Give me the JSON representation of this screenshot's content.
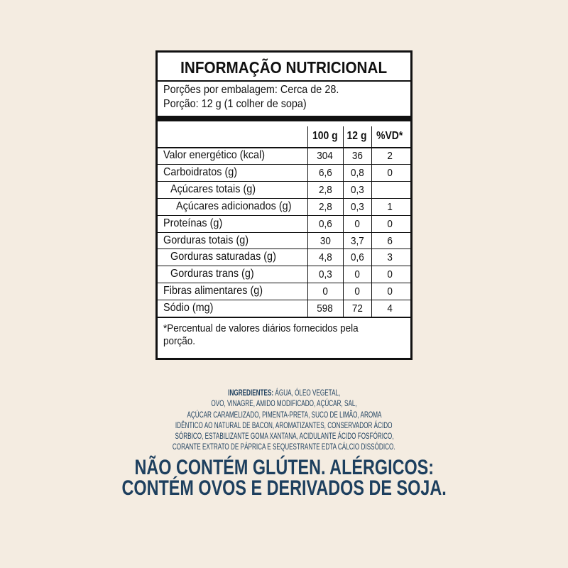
{
  "label": {
    "title": "INFORMAÇÃO NUTRICIONAL",
    "servings": [
      "Porções por embalagem: Cerca de 28.",
      "Porção: 12 g (1 colher de sopa)"
    ],
    "columns": [
      "100 g",
      "12 g",
      "%VD*"
    ],
    "rows": [
      [
        "Valor energético (kcal)",
        "304",
        "36",
        "2"
      ],
      [
        "Carboidratos (g)",
        "6,6",
        "0,8",
        "0"
      ],
      [
        "Açúcares totais (g)",
        "2,8",
        "0,3",
        null
      ],
      [
        "Açúcares adicionados (g)",
        "2,8",
        "0,3",
        "1"
      ],
      [
        "Proteínas (g)",
        "0,6",
        "0",
        "0"
      ],
      [
        "Gorduras totais (g)",
        "30",
        "3,7",
        "6"
      ],
      [
        "Gorduras saturadas (g)",
        "4,8",
        "0,6",
        "3"
      ],
      [
        "Gorduras trans (g)",
        "0,3",
        "0",
        "0"
      ],
      [
        "Fibras alimentares (g)",
        "0",
        "0",
        "0"
      ],
      [
        "Sódio (mg)",
        "598",
        "72",
        "4"
      ]
    ],
    "footnote": [
      "*Percentual de valores diários fornecidos pela",
      "porção."
    ]
  },
  "ingredients": {
    "label": "INGREDIENTES:",
    "lines": [
      "ÁGUA, ÓLEO VEGETAL,",
      "OVO, VINAGRE, AMIDO MODIFICADO, AÇÚCAR, SAL,",
      "AÇÚCAR CARAMELIZADO, PIMENTA-PRETA, SUCO DE LIMÃO, AROMA",
      "IDÊNTICO AO NATURAL DE BACON, AROMATIZANTES, CONSERVADOR ÁCIDO",
      "SÓRBICO, ESTABILIZANTE GOMA XANTANA, ACIDULANTE ÁCIDO FOSFÓRICO,",
      "CORANTE EXTRATO DE PÁPRICA E SEQUESTRANTE EDTA CÁLCIO DISSÓDICO."
    ],
    "allergens": [
      "NÃO CONTÉM GLÚTEN. ALÉRGICOS:",
      "CONTÉM OVOS E DERIVADOS DE SOJA."
    ]
  }
}
